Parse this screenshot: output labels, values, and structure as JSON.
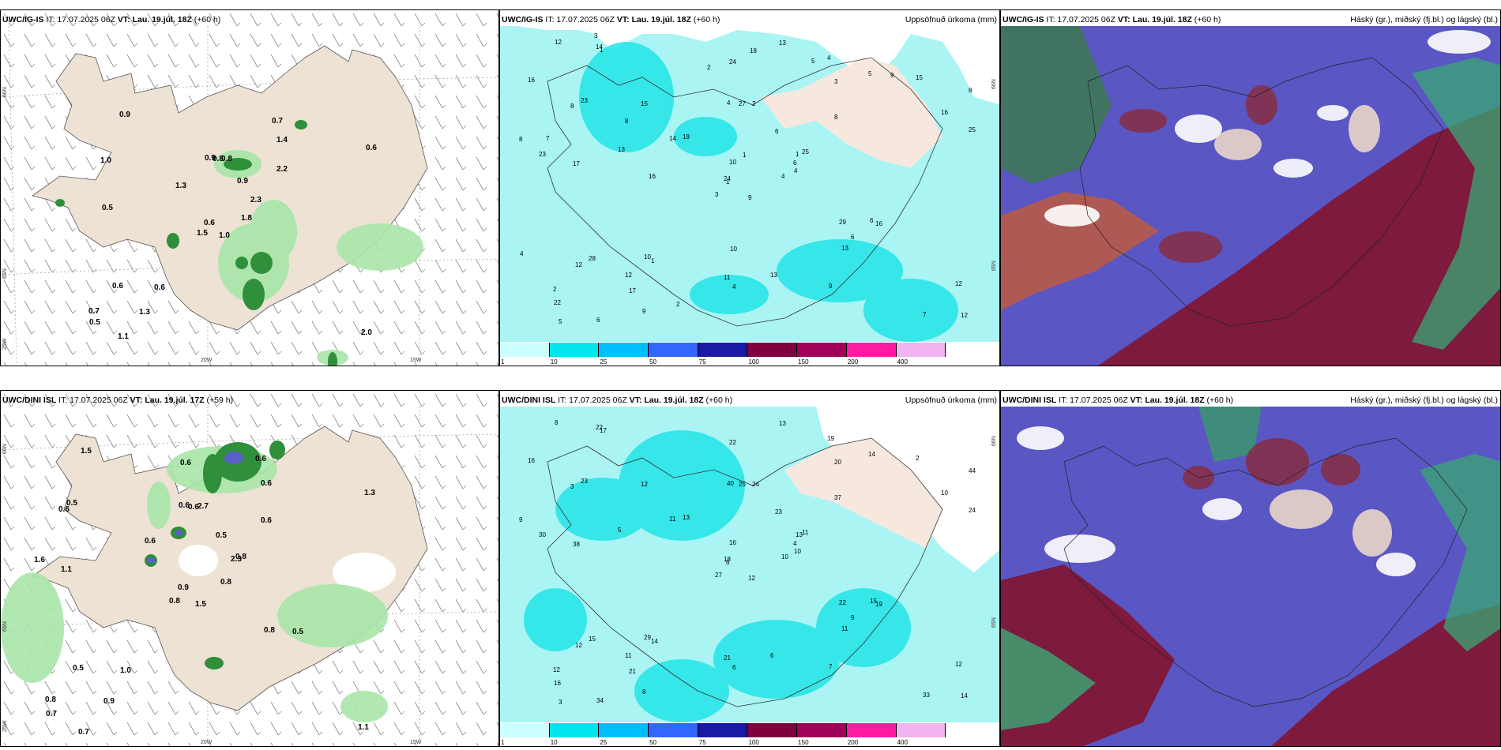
{
  "panels": [
    {
      "model": "UWC/IG-IS",
      "it": "IT: 17.07.2025 06Z",
      "vt_label": "VT:",
      "vt": "Lau. 19.júl. 18Z",
      "lead": "(+60 h)",
      "right": ""
    },
    {
      "model": "UWC/IG-IS",
      "it": "IT: 17.07.2025 06Z",
      "vt_label": "VT:",
      "vt": "Lau. 19.júl. 18Z",
      "lead": "(+60 h)",
      "right": "Uppsöfnuð úrkoma (mm)"
    },
    {
      "model": "UWC/IG-IS",
      "it": "IT: 17.07.2025 06Z",
      "vt_label": "VT:",
      "vt": "Lau. 19.júl. 18Z",
      "lead": "(+60 h)",
      "right": "Háský (gr.), miðský (fj.bl.) og lágský (bl.)"
    },
    {
      "model": "UWC/DINI ISL",
      "it": "IT: 17.07.2025 06Z",
      "vt_label": "VT:",
      "vt": "Lau. 19.júl. 17Z",
      "lead": "(+59 h)",
      "right": ""
    },
    {
      "model": "UWC/DINI ISL",
      "it": "IT: 17.07.2025 06Z",
      "vt_label": "VT:",
      "vt": "Lau. 19.júl. 18Z",
      "lead": "(+60 h)",
      "right": "Uppsöfnuð úrkoma (mm)"
    },
    {
      "model": "UWC/DINI ISL",
      "it": "IT: 17.07.2025 06Z",
      "vt_label": "VT:",
      "vt": "Lau. 19.júl. 18Z",
      "lead": "(+60 h)",
      "right": "Háský (gr.), miðský (fj.bl.) og lágský (bl.)"
    }
  ],
  "axis_labels": {
    "lat66": "66N",
    "lat65": "65N",
    "lon20": "20W",
    "lon15": "15W",
    "lon25": "25W"
  },
  "precip_scale": {
    "labels": [
      "1",
      "10",
      "25",
      "50",
      "75",
      "100",
      "150",
      "200",
      "400"
    ],
    "colors": [
      "#ccffff",
      "#00e5ee",
      "#00bfff",
      "#3366ff",
      "#1a1aa6",
      "#800040",
      "#a0005a",
      "#ff1aa3",
      "#f2b3f2"
    ]
  },
  "top_left_values": [
    "1.0",
    "1.0",
    "0.6",
    "0.7",
    "2.3",
    "0.6",
    "0.7",
    "0.8",
    "1.4",
    "1.8",
    "0.9",
    "2.0",
    "0.5",
    "0.6",
    "1.5",
    "2.2",
    "1.1",
    "0.9",
    "0.9",
    "0.6",
    "1.3",
    "0.5",
    "1.3",
    "0.8"
  ],
  "bottom_left_values": [
    "1.5",
    "0.6",
    "0.9",
    "0.8",
    "2.3",
    "1.0",
    "0.6",
    "2.7",
    "0.6",
    "0.8",
    "1.5",
    "1.1",
    "1.1",
    "1.3",
    "0.8",
    "0.6",
    "0.7",
    "0.6",
    "0.5",
    "0.5",
    "0.6",
    "0.7",
    "0.9",
    "0.6",
    "0.8",
    "0.5",
    "0.5",
    "0.6",
    "1.6",
    "0.8"
  ],
  "top_mid_values": [
    "9",
    "8",
    "1",
    "2",
    "1",
    "1",
    "4",
    "2",
    "3",
    "4",
    "1",
    "12",
    "17",
    "8",
    "3",
    "8",
    "6",
    "4",
    "6",
    "28",
    "19",
    "22",
    "17",
    "27",
    "25",
    "16",
    "23",
    "24",
    "23",
    "29",
    "25",
    "24",
    "11",
    "10",
    "15",
    "5",
    "10",
    "7",
    "12",
    "6",
    "13",
    "14",
    "13",
    "13",
    "9",
    "8",
    "6",
    "5",
    "4",
    "4",
    "12",
    "16",
    "16",
    "6",
    "9",
    "12",
    "14",
    "12",
    "13",
    "15",
    "18",
    "16",
    "7",
    "8",
    "9",
    "3",
    "5",
    "2",
    "1",
    "4",
    "10",
    "2"
  ],
  "bottom_mid_values": [
    "12",
    "3",
    "6",
    "12",
    "13",
    "14",
    "19",
    "24",
    "20",
    "10",
    "17",
    "14",
    "38",
    "44",
    "27",
    "37",
    "34",
    "40",
    "23",
    "15",
    "13",
    "16",
    "21",
    "25",
    "11",
    "19",
    "23",
    "22",
    "30",
    "22",
    "24",
    "18",
    "21",
    "16",
    "12",
    "14",
    "29",
    "33",
    "12",
    "15",
    "13",
    "11",
    "5",
    "11",
    "8",
    "9",
    "4",
    "3",
    "6",
    "10",
    "12",
    "10",
    "16",
    "9",
    "7",
    "11",
    "22",
    "8",
    "6",
    "2"
  ]
}
